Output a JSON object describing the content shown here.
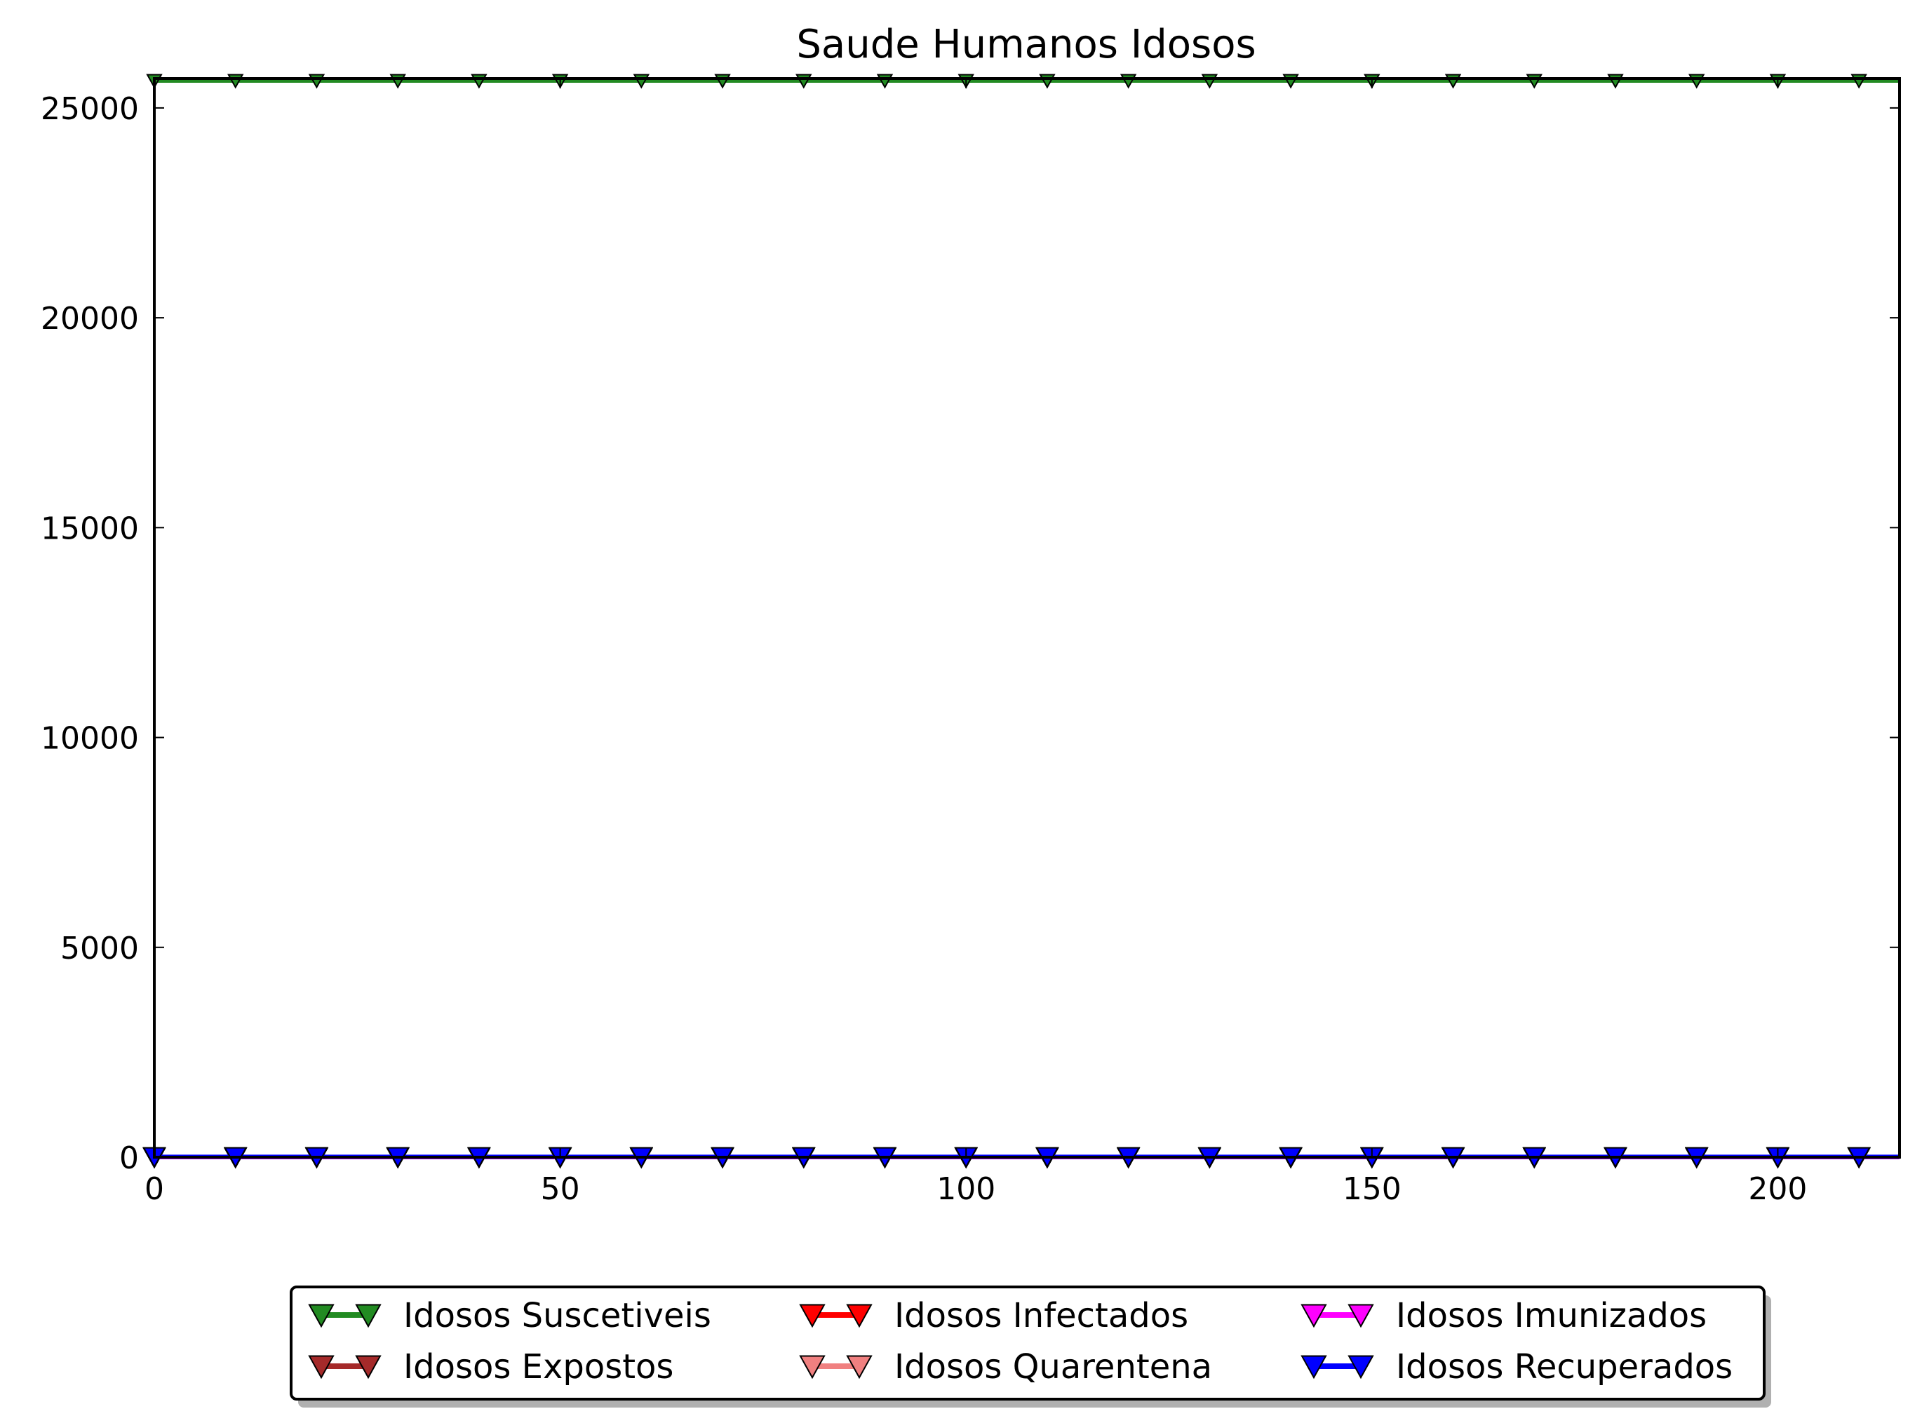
{
  "chart_data": {
    "type": "line",
    "title": "Saude Humanos Idosos",
    "xlabel": "",
    "ylabel": "",
    "xlim": [
      0,
      215
    ],
    "ylim": [
      0,
      25700
    ],
    "xticks": [
      0,
      50,
      100,
      150,
      200
    ],
    "yticks": [
      0,
      5000,
      10000,
      15000,
      20000,
      25000
    ],
    "grid": false,
    "legend_position": "bottom-center, below plot, 3 columns",
    "marker_x": [
      0,
      10,
      20,
      30,
      40,
      50,
      60,
      70,
      80,
      90,
      100,
      110,
      120,
      130,
      140,
      150,
      160,
      170,
      180,
      190,
      200,
      210
    ],
    "marker": "triangle-down",
    "series": [
      {
        "name": "Idosos Suscetiveis",
        "color": "#228B22",
        "x": [
          0,
          215
        ],
        "y": [
          25650,
          25650
        ]
      },
      {
        "name": "Idosos Expostos",
        "color": "#A52A2A",
        "x": [
          0,
          215
        ],
        "y": [
          0,
          0
        ]
      },
      {
        "name": "Idosos Infectados",
        "color": "#FF0000",
        "x": [
          0,
          215
        ],
        "y": [
          0,
          0
        ]
      },
      {
        "name": "Idosos Quarentena",
        "color": "#F08080",
        "x": [
          0,
          215
        ],
        "y": [
          0,
          0
        ]
      },
      {
        "name": "Idosos Imunizados",
        "color": "#FF00FF",
        "x": [
          0,
          215
        ],
        "y": [
          0,
          0
        ]
      },
      {
        "name": "Idosos Recuperados",
        "color": "#0000FF",
        "x": [
          0,
          215
        ],
        "y": [
          10,
          10
        ]
      }
    ]
  }
}
